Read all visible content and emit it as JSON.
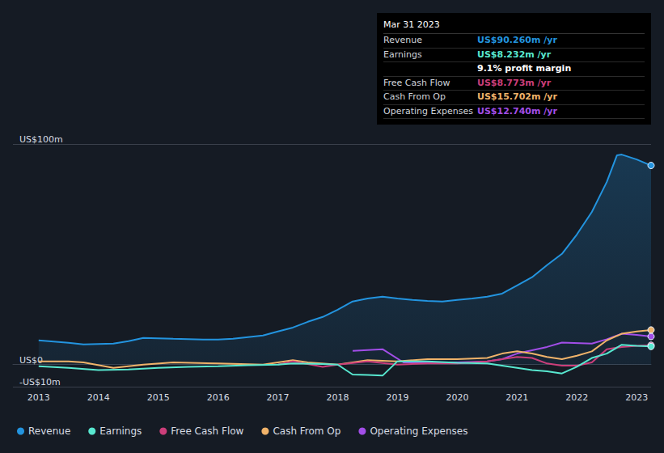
{
  "chart_data": {
    "type": "line",
    "xlim": [
      2012.57,
      2023.24
    ],
    "xticks": [
      2013,
      2014,
      2015,
      2016,
      2017,
      2018,
      2019,
      2020,
      2021,
      2022,
      2023
    ],
    "ylim": [
      -10,
      100
    ],
    "yticks": [
      {
        "value": 100,
        "label": "US$100m"
      },
      {
        "value": 0,
        "label": "US$0"
      },
      {
        "value": -10,
        "label": "-US$10m"
      }
    ],
    "grid": true,
    "legend": "bottom",
    "series": [
      {
        "name": "Revenue",
        "color": "#2394df",
        "x": [
          2013,
          2013.5,
          2013.75,
          2014.25,
          2014.5,
          2014.75,
          2015.25,
          2015.75,
          2016,
          2016.25,
          2016.5,
          2016.75,
          2017,
          2017.25,
          2017.5,
          2017.75,
          2018,
          2018.25,
          2018.5,
          2018.75,
          2019,
          2019.25,
          2019.5,
          2019.75,
          2020,
          2020.25,
          2020.5,
          2020.75,
          2021,
          2021.25,
          2021.5,
          2021.75,
          2022,
          2022.25,
          2022.5,
          2022.67,
          2022.75,
          2023,
          2023.24
        ],
        "values": [
          11.0,
          9.9,
          9.2,
          9.5,
          10.6,
          12.1,
          11.7,
          11.4,
          11.4,
          11.7,
          12.5,
          13.2,
          15.0,
          16.8,
          19.4,
          21.6,
          24.9,
          28.6,
          30.0,
          30.8,
          30.0,
          29.3,
          28.9,
          28.6,
          29.3,
          30.0,
          30.8,
          32.2,
          35.9,
          39.6,
          45.1,
          50.2,
          59.0,
          69.2,
          82.8,
          94.9,
          95.2,
          93.0,
          90.26
        ]
      },
      {
        "name": "Earnings",
        "color": "#58e8d0",
        "x": [
          2013,
          2013.5,
          2014,
          2014.5,
          2015,
          2015.5,
          2016,
          2016.5,
          2017,
          2017.25,
          2017.75,
          2018,
          2018.25,
          2018.5,
          2018.75,
          2019,
          2019.5,
          2020,
          2020.5,
          2020.75,
          2021,
          2021.25,
          2021.5,
          2021.75,
          2022,
          2022.25,
          2022.5,
          2022.75,
          2023,
          2023.24
        ],
        "values": [
          -0.7,
          -1.5,
          -2.5,
          -2.2,
          -1.5,
          -1.0,
          -0.7,
          -0.3,
          0,
          0.5,
          0.3,
          0,
          -4.5,
          -4.7,
          -5.0,
          1.5,
          1.5,
          0.8,
          0.5,
          -0.5,
          -1.5,
          -2.5,
          -3.0,
          -4.0,
          -1.0,
          3.0,
          5.0,
          9.0,
          8.5,
          8.232
        ]
      },
      {
        "name": "Free Cash Flow",
        "color": "#cc3e7a",
        "x": [
          2017,
          2017.25,
          2017.75,
          2018,
          2018.5,
          2019,
          2019.5,
          2020,
          2020.5,
          2021,
          2021.25,
          2021.5,
          2021.75,
          2022,
          2022.25,
          2022.5,
          2022.75,
          2023,
          2023.24
        ],
        "values": [
          0,
          1.5,
          -1.0,
          0,
          1.5,
          0,
          0.5,
          0.5,
          1.5,
          3.5,
          3.0,
          0.5,
          -0.5,
          -0.5,
          1.0,
          7.0,
          8.0,
          8.5,
          8.773
        ]
      },
      {
        "name": "Cash From Op",
        "color": "#f0b36a",
        "x": [
          2013,
          2013.5,
          2013.75,
          2014.25,
          2014.75,
          2015.25,
          2016,
          2016.75,
          2017.25,
          2017.5,
          2018,
          2018.5,
          2019,
          2019.5,
          2020,
          2020.5,
          2020.75,
          2021,
          2021.25,
          2021.5,
          2021.75,
          2022,
          2022.25,
          2022.5,
          2022.75,
          2023,
          2023.24
        ],
        "values": [
          1.5,
          1.5,
          1.0,
          -1.5,
          0,
          1.0,
          0.5,
          0,
          2.0,
          1.0,
          0,
          2.0,
          1.5,
          2.5,
          2.5,
          3.0,
          5.0,
          6.0,
          5.0,
          3.5,
          2.5,
          4.0,
          6.0,
          11.0,
          14.0,
          15.0,
          15.702
        ]
      },
      {
        "name": "Operating Expenses",
        "color": "#a24ee8",
        "x": [
          2018.25,
          2018.75,
          2019.1,
          2020,
          2020.5,
          2020.75,
          2021,
          2021.5,
          2021.75,
          2022.25,
          2022.5,
          2022.75,
          2023,
          2023.24
        ],
        "values": [
          6.2,
          7.0,
          1.0,
          1.0,
          1.5,
          2.5,
          5.0,
          8.0,
          10.0,
          9.5,
          11.5,
          14.0,
          13.5,
          12.74
        ]
      }
    ],
    "info_box": {
      "title": "Mar 31 2023",
      "rows": [
        {
          "label": "Revenue",
          "value": "US$90.260m /yr"
        },
        {
          "label": "Earnings",
          "value": "US$8.232m /yr"
        },
        {
          "value": "9.1% profit margin"
        },
        {
          "label": "Free Cash Flow",
          "value": "US$8.773m /yr"
        },
        {
          "label": "Cash From Op",
          "value": "US$15.702m /yr"
        },
        {
          "label": "Operating Expenses",
          "value": "US$12.740m /yr"
        }
      ]
    }
  }
}
